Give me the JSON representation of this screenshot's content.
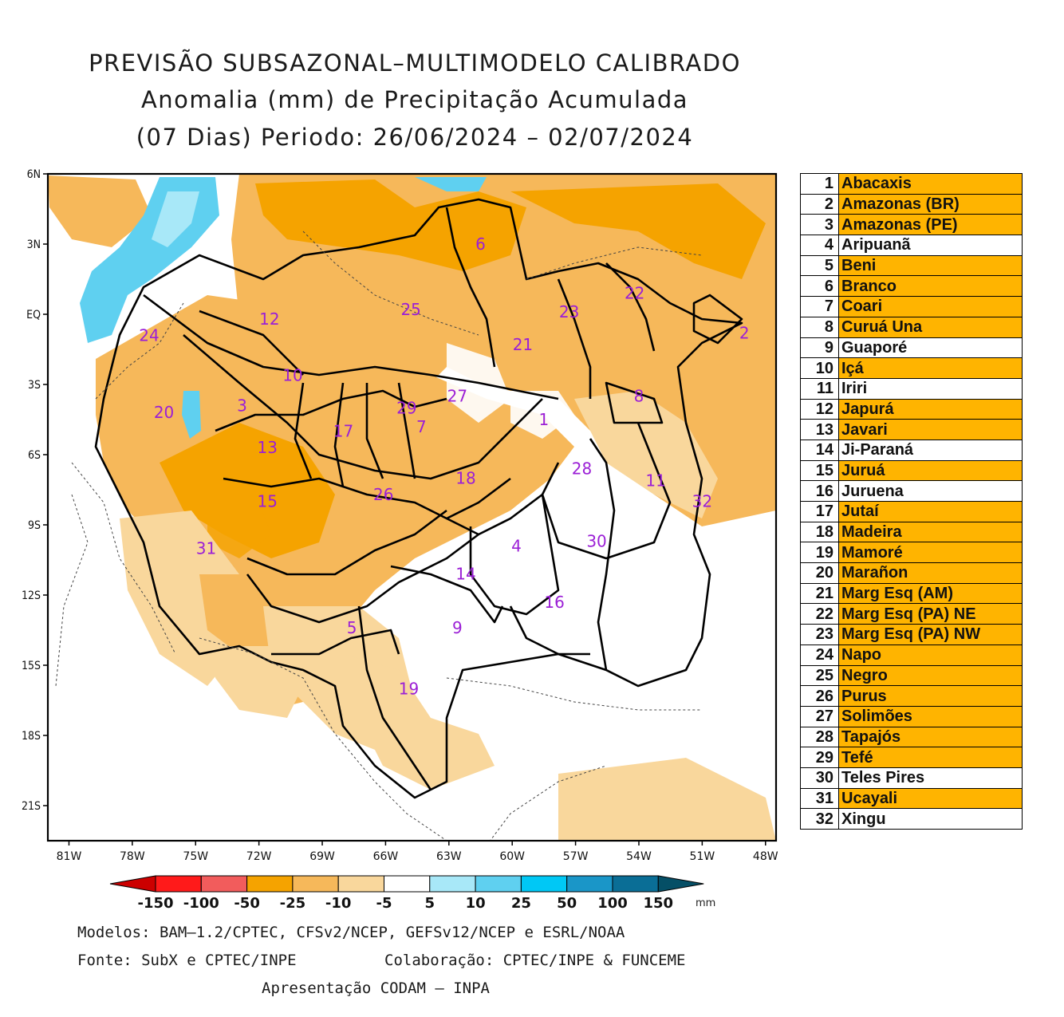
{
  "title": {
    "line1": "PREVISÃO SUBSAZONAL–MULTIMODELO CALIBRADO",
    "line2": "Anomalia (mm) de Precipitação Acumulada",
    "line3": "(07 Dias) Periodo: 26/06/2024 – 02/07/2024"
  },
  "axes": {
    "lat_labels": [
      "6N",
      "3N",
      "EQ",
      "3S",
      "6S",
      "9S",
      "12S",
      "15S",
      "18S",
      "21S"
    ],
    "lon_labels": [
      "81W",
      "78W",
      "75W",
      "72W",
      "69W",
      "66W",
      "63W",
      "60W",
      "57W",
      "54W",
      "51W",
      "48W"
    ],
    "lat_range": [
      6,
      -22.5
    ],
    "lon_range": [
      -82,
      -47.5
    ]
  },
  "basins": [
    {
      "id": "1",
      "name": "Abacaxis",
      "highlight": true,
      "lon": -58.5,
      "lat": -4.5
    },
    {
      "id": "2",
      "name": "Amazonas (BR)",
      "highlight": true,
      "lon": -49.0,
      "lat": -0.8
    },
    {
      "id": "3",
      "name": "Amazonas (PE)",
      "highlight": true,
      "lon": -72.8,
      "lat": -3.9
    },
    {
      "id": "4",
      "name": "Aripuanã",
      "highlight": false,
      "lon": -59.8,
      "lat": -9.9
    },
    {
      "id": "5",
      "name": "Beni",
      "highlight": true,
      "lon": -67.6,
      "lat": -13.4
    },
    {
      "id": "6",
      "name": "Branco",
      "highlight": true,
      "lon": -61.5,
      "lat": 3.0
    },
    {
      "id": "7",
      "name": "Coari",
      "highlight": true,
      "lon": -64.3,
      "lat": -4.8
    },
    {
      "id": "8",
      "name": "Curuá Una",
      "highlight": true,
      "lon": -54.0,
      "lat": -3.5
    },
    {
      "id": "9",
      "name": "Guaporé",
      "highlight": false,
      "lon": -62.6,
      "lat": -13.4
    },
    {
      "id": "10",
      "name": "Içá",
      "highlight": true,
      "lon": -70.4,
      "lat": -2.6
    },
    {
      "id": "11",
      "name": "Iriri",
      "highlight": false,
      "lon": -53.2,
      "lat": -7.1
    },
    {
      "id": "12",
      "name": "Japurá",
      "highlight": true,
      "lon": -71.5,
      "lat": -0.2
    },
    {
      "id": "13",
      "name": "Javari",
      "highlight": true,
      "lon": -71.6,
      "lat": -5.7
    },
    {
      "id": "14",
      "name": "Ji-Paraná",
      "highlight": false,
      "lon": -62.2,
      "lat": -11.1
    },
    {
      "id": "15",
      "name": "Juruá",
      "highlight": true,
      "lon": -71.6,
      "lat": -8.0
    },
    {
      "id": "16",
      "name": "Juruena",
      "highlight": false,
      "lon": -58.0,
      "lat": -12.3
    },
    {
      "id": "17",
      "name": "Jutaí",
      "highlight": true,
      "lon": -68.0,
      "lat": -5.0
    },
    {
      "id": "18",
      "name": "Madeira",
      "highlight": true,
      "lon": -62.2,
      "lat": -7.0
    },
    {
      "id": "19",
      "name": "Mamoré",
      "highlight": true,
      "lon": -64.9,
      "lat": -16.0
    },
    {
      "id": "20",
      "name": "Marañon",
      "highlight": true,
      "lon": -76.5,
      "lat": -4.2
    },
    {
      "id": "21",
      "name": "Marg Esq (AM)",
      "highlight": true,
      "lon": -59.5,
      "lat": -1.3
    },
    {
      "id": "22",
      "name": "Marg Esq (PA) NE",
      "highlight": true,
      "lon": -54.2,
      "lat": 0.9
    },
    {
      "id": "23",
      "name": "Marg Esq (PA) NW",
      "highlight": true,
      "lon": -57.3,
      "lat": 0.1
    },
    {
      "id": "24",
      "name": "Napo",
      "highlight": true,
      "lon": -77.2,
      "lat": -0.9
    },
    {
      "id": "25",
      "name": "Negro",
      "highlight": true,
      "lon": -64.8,
      "lat": 0.2
    },
    {
      "id": "26",
      "name": "Purus",
      "highlight": true,
      "lon": -66.1,
      "lat": -7.7
    },
    {
      "id": "27",
      "name": "Solimões",
      "highlight": true,
      "lon": -62.6,
      "lat": -3.5
    },
    {
      "id": "28",
      "name": "Tapajós",
      "highlight": true,
      "lon": -56.7,
      "lat": -6.6
    },
    {
      "id": "29",
      "name": "Tefé",
      "highlight": true,
      "lon": -65.0,
      "lat": -4.0
    },
    {
      "id": "30",
      "name": "Teles Pires",
      "highlight": false,
      "lon": -56.0,
      "lat": -9.7
    },
    {
      "id": "31",
      "name": "Ucayali",
      "highlight": true,
      "lon": -74.5,
      "lat": -10.0
    },
    {
      "id": "32",
      "name": "Xingu",
      "highlight": false,
      "lon": -51.0,
      "lat": -8.0
    }
  ],
  "colorbar": {
    "labels": [
      "-150",
      "-100",
      "-50",
      "-25",
      "-10",
      "-5",
      "5",
      "10",
      "25",
      "50",
      "100",
      "150"
    ],
    "colors": [
      "#cc0000",
      "#ff1a1a",
      "#f25c5c",
      "#f5a300",
      "#f6b85a",
      "#f9d79c",
      "#ffffff",
      "#a8e8f8",
      "#5fd0f0",
      "#00c8f5",
      "#1a96c8",
      "#0a6e96",
      "#054f66"
    ],
    "unit": "mm"
  },
  "colors": {
    "highlight": "#ffb400",
    "anomaly_weak": "#f9d79c",
    "anomaly_mid": "#f6b85a",
    "anomaly_strong": "#f5a300",
    "wet": "#5fd0f0",
    "label_purple": "#9b1fd6"
  },
  "footer": {
    "line1": "Modelos: BAM–1.2/CPTEC, CFSv2/NCEP, GEFSv12/NCEP e ESRL/NOAA",
    "line2_left": "Fonte: SubX e CPTEC/INPE",
    "line2_right": "Colaboração: CPTEC/INPE & FUNCEME",
    "line3": "Apresentação CODAM – INPA"
  }
}
